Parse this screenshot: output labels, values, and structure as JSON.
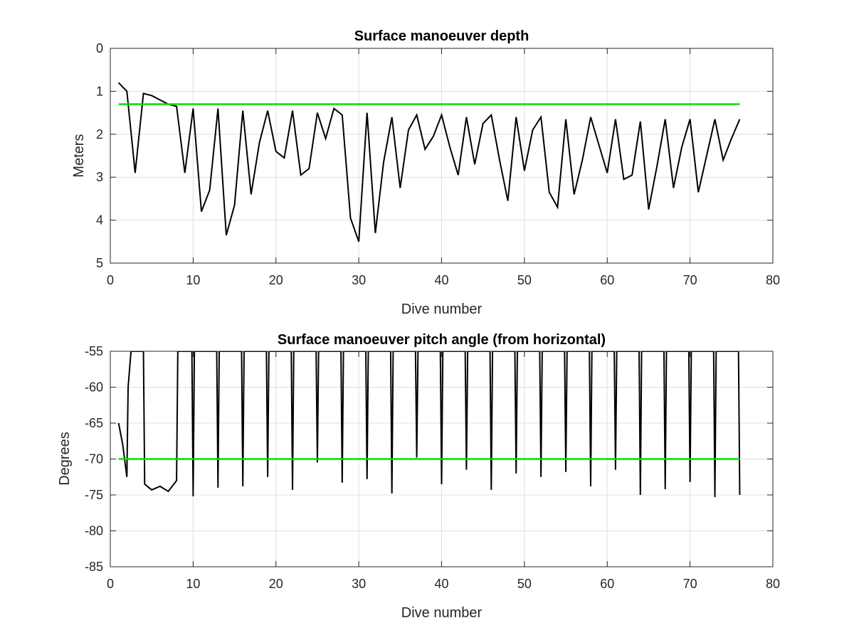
{
  "chart_data": [
    {
      "type": "line",
      "title": "Surface manoeuver depth",
      "xlabel": "Dive number",
      "ylabel": "Meters",
      "xlim": [
        0,
        80
      ],
      "ylim": [
        0,
        5
      ],
      "y_reversed": true,
      "grid": true,
      "xticks": [
        "0",
        "10",
        "20",
        "30",
        "40",
        "50",
        "60",
        "70",
        "80"
      ],
      "yticks": [
        "0",
        "1",
        "2",
        "3",
        "4",
        "5"
      ],
      "series": [
        {
          "color": "#000000",
          "x": [
            1,
            2,
            3,
            4,
            5,
            6,
            7,
            8,
            9,
            10,
            11,
            12,
            13,
            14,
            15,
            16,
            17,
            18,
            19,
            20,
            21,
            22,
            23,
            24,
            25,
            26,
            27,
            28,
            29,
            30,
            31,
            32,
            33,
            34,
            35,
            36,
            37,
            38,
            39,
            40,
            41,
            42,
            43,
            44,
            45,
            46,
            47,
            48,
            49,
            50,
            51,
            52,
            53,
            54,
            55,
            56,
            57,
            58,
            59,
            60,
            61,
            62,
            63,
            64,
            65,
            66,
            67,
            68,
            69,
            70,
            71,
            72,
            73,
            74,
            75,
            76
          ],
          "y": [
            0.8,
            1.0,
            2.9,
            1.05,
            1.1,
            1.2,
            1.3,
            1.35,
            2.9,
            1.4,
            3.8,
            3.3,
            1.4,
            4.35,
            3.65,
            1.45,
            3.4,
            2.2,
            1.45,
            2.4,
            2.55,
            1.45,
            2.95,
            2.8,
            1.5,
            2.1,
            1.4,
            1.55,
            3.95,
            4.5,
            1.5,
            4.3,
            2.65,
            1.6,
            3.25,
            1.9,
            1.55,
            2.35,
            2.05,
            1.55,
            2.3,
            2.95,
            1.6,
            2.7,
            1.75,
            1.55,
            2.6,
            3.55,
            1.6,
            2.85,
            1.9,
            1.6,
            3.35,
            3.7,
            1.65,
            3.4,
            2.6,
            1.6,
            2.25,
            2.9,
            1.65,
            3.05,
            2.95,
            1.7,
            3.75,
            2.75,
            1.65,
            3.25,
            2.3,
            1.65,
            3.35,
            2.5,
            1.65,
            2.6,
            2.1,
            1.65
          ]
        },
        {
          "color": "#00e000",
          "x": [
            1,
            76
          ],
          "y": [
            1.3,
            1.3
          ]
        }
      ]
    },
    {
      "type": "line",
      "title": "Surface manoeuver pitch angle (from horizontal)",
      "xlabel": "Dive number",
      "ylabel": "Degrees",
      "xlim": [
        0,
        80
      ],
      "ylim": [
        -85,
        -55
      ],
      "grid": true,
      "xticks": [
        "0",
        "10",
        "20",
        "30",
        "40",
        "50",
        "60",
        "70",
        "80"
      ],
      "yticks": [
        "-55",
        "-60",
        "-65",
        "-70",
        "-75",
        "-80",
        "-85"
      ],
      "series": [
        {
          "color": "#000000",
          "x": [
            1,
            1.5,
            2,
            2.15,
            2.5,
            3,
            4,
            4.15,
            5,
            6,
            7,
            8,
            8.15,
            9,
            9.85,
            10,
            10.15,
            11,
            12,
            12.85,
            13,
            13.15,
            14,
            15,
            15.85,
            16,
            16.15,
            17,
            18,
            18.85,
            19,
            19.15,
            20,
            21,
            21.85,
            22,
            22.15,
            23,
            24,
            24.85,
            25,
            25.15,
            26,
            27,
            27.85,
            28,
            28.15,
            29,
            30,
            30.85,
            31,
            31.15,
            32,
            33,
            33.85,
            34,
            34.15,
            35,
            36,
            36.85,
            37,
            37.15,
            38,
            39,
            39.85,
            40,
            40.15,
            41,
            42,
            42.85,
            43,
            43.15,
            44,
            45,
            45.85,
            46,
            46.15,
            47,
            48,
            48.85,
            49,
            49.15,
            50,
            51,
            51.85,
            52,
            52.15,
            53,
            54,
            54.85,
            55,
            55.15,
            56,
            57,
            57.85,
            58,
            58.15,
            59,
            60,
            60.85,
            61,
            61.15,
            62,
            63,
            63.85,
            64,
            64.15,
            65,
            66,
            66.85,
            67,
            67.15,
            68,
            69,
            69.85,
            70,
            70.15,
            71,
            72,
            72.85,
            73,
            73.15,
            74,
            75,
            75.85,
            76
          ],
          "y": [
            -65,
            -68,
            -72.5,
            -60,
            -55,
            -55,
            -55,
            -73.5,
            -74.3,
            -73.8,
            -74.5,
            -73,
            -55,
            -55,
            -55,
            -75.2,
            -55,
            -55,
            -55,
            -55,
            -74,
            -55,
            -55,
            -55,
            -55,
            -73.8,
            -55,
            -55,
            -55,
            -55,
            -72.5,
            -55,
            -55,
            -55,
            -55,
            -74.3,
            -55,
            -55,
            -55,
            -55,
            -70.5,
            -55,
            -55,
            -55,
            -55,
            -73.3,
            -55,
            -55,
            -55,
            -55,
            -72.8,
            -55,
            -55,
            -55,
            -55,
            -74.8,
            -55,
            -55,
            -55,
            -55,
            -69.8,
            -55,
            -55,
            -55,
            -55,
            -73.5,
            -55,
            -55,
            -55,
            -55,
            -71.5,
            -55,
            -55,
            -55,
            -55,
            -74.3,
            -55,
            -55,
            -55,
            -55,
            -72,
            -55,
            -55,
            -55,
            -55,
            -72.5,
            -55,
            -55,
            -55,
            -55,
            -71.8,
            -55,
            -55,
            -55,
            -55,
            -73.8,
            -55,
            -55,
            -55,
            -55,
            -71.5,
            -55,
            -55,
            -55,
            -55,
            -75,
            -55,
            -55,
            -55,
            -55,
            -74.2,
            -55,
            -55,
            -55,
            -55,
            -73.2,
            -55,
            -55,
            -55,
            -55,
            -75.3,
            -55,
            -55,
            -55,
            -55,
            -75
          ]
        },
        {
          "color": "#00e000",
          "x": [
            1,
            76
          ],
          "y": [
            -70,
            -70
          ]
        }
      ]
    }
  ]
}
